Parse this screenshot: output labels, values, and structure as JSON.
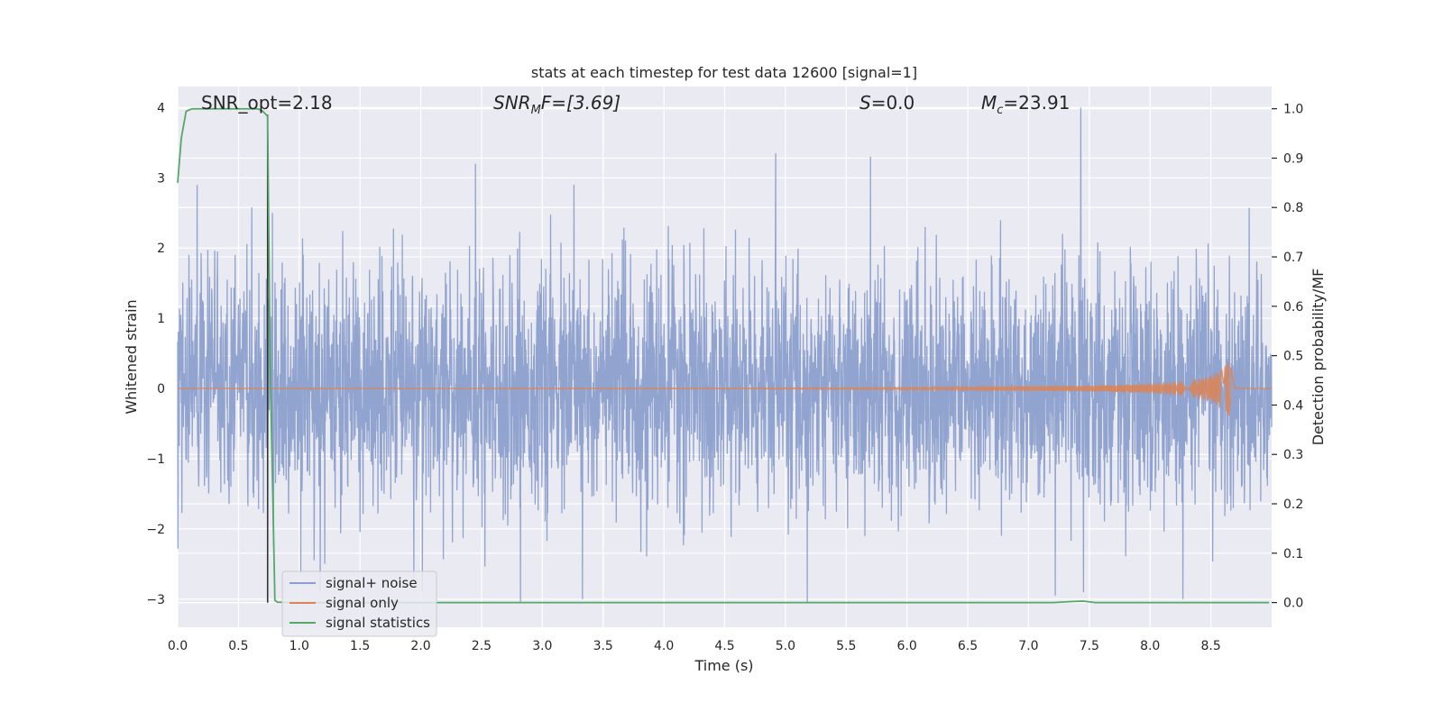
{
  "chart_data": {
    "type": "line",
    "title": "stats at each timestep for test data 12600 [signal=1]",
    "xlabel": "Time (s)",
    "ylabel": "Whitened strain",
    "ylabel_right": "Detection probability/MF",
    "xlim": [
      0,
      9.0
    ],
    "ylim": [
      -3.4,
      4.3
    ],
    "ylim_right": [
      -0.05,
      1.045
    ],
    "xticks": [
      "0.0",
      "0.5",
      "1.0",
      "1.5",
      "2.0",
      "2.5",
      "3.0",
      "3.5",
      "4.0",
      "4.5",
      "5.0",
      "5.5",
      "6.0",
      "6.5",
      "7.0",
      "7.5",
      "8.0",
      "8.5"
    ],
    "xtick_values": [
      0,
      0.5,
      1,
      1.5,
      2,
      2.5,
      3,
      3.5,
      4,
      4.5,
      5,
      5.5,
      6,
      6.5,
      7,
      7.5,
      8,
      8.5
    ],
    "yticks": [
      "−3",
      "−2",
      "−1",
      "0",
      "1",
      "2",
      "3",
      "4"
    ],
    "ytick_values": [
      -3,
      -2,
      -1,
      0,
      1,
      2,
      3,
      4
    ],
    "yticks_right": [
      "0.0",
      "0.1",
      "0.2",
      "0.3",
      "0.4",
      "0.5",
      "0.6",
      "0.7",
      "0.8",
      "0.9",
      "1.0"
    ],
    "ytick_right_values": [
      0,
      0.1,
      0.2,
      0.3,
      0.4,
      0.5,
      0.6,
      0.7,
      0.8,
      0.9,
      1.0
    ],
    "annotations": {
      "snr_opt": "SNR_opt=2.18",
      "snr_mf_main": "SNR",
      "snr_mf_sub": "M",
      "snr_mf_rest": "F=[3.69]",
      "s_label": "S",
      "s_value": "=0.0",
      "mc_main": "M",
      "mc_sub": "c",
      "mc_value": "=23.91"
    },
    "series": [
      {
        "name": "signal+ noise",
        "color": "#8c9fcc",
        "axis": "left",
        "description": "whitened noisy strain, roughly Gaussian with sigma ~0.85, peaks near 4.0 at t=7.43",
        "peaks": [
          [
            0.16,
            2.9
          ],
          [
            0.78,
            2.5
          ],
          [
            2.45,
            3.2
          ],
          [
            3.26,
            2.9
          ],
          [
            4.92,
            3.35
          ],
          [
            5.7,
            3.3
          ],
          [
            7.43,
            4.0
          ],
          [
            2.82,
            -3.05
          ],
          [
            3.33,
            -3.0
          ],
          [
            5.18,
            -3.05
          ],
          [
            7.22,
            -2.95
          ],
          [
            8.27,
            -3.0
          ]
        ]
      },
      {
        "name": "signal only",
        "color": "#dd8452",
        "axis": "left",
        "description": "chirp, amplitude near 0 until ~5 s, growing to ~0.4 at t=8.65",
        "x": [
          0,
          4.5,
          5.5,
          6.5,
          7.5,
          8.0,
          8.3,
          8.5,
          8.6,
          8.65,
          8.7,
          9.0
        ],
        "amplitude": [
          0,
          0.005,
          0.01,
          0.02,
          0.04,
          0.07,
          0.11,
          0.18,
          0.28,
          0.4,
          0,
          0
        ]
      },
      {
        "name": "signal statistics",
        "color": "#55a868",
        "axis": "right",
        "x": [
          0.0,
          0.03,
          0.07,
          0.12,
          0.2,
          0.5,
          0.66,
          0.7,
          0.74,
          0.76,
          0.8,
          0.82,
          0.9,
          1.5,
          7.2,
          7.35,
          7.45,
          7.55,
          8.0,
          8.98
        ],
        "values": [
          0.85,
          0.94,
          0.995,
          1.0,
          1.0,
          1.0,
          1.0,
          0.995,
          0.985,
          0.5,
          0.005,
          0.001,
          0.0,
          0.0,
          0.0,
          0.002,
          0.003,
          0.0,
          0.0,
          0.0
        ]
      }
    ],
    "marker_line": {
      "x": 0.74,
      "y_from": -3.05,
      "y_to": 3.9
    },
    "legend": {
      "position": "bottom-left",
      "entries": [
        "signal+ noise",
        "signal only",
        "signal statistics"
      ]
    },
    "colors": {
      "axes_background": "#eaeaf2",
      "grid": "#ffffff",
      "noise": "#8c9fcc",
      "signal": "#dd8452",
      "statistics": "#55a868"
    }
  }
}
